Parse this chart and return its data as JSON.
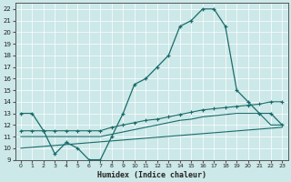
{
  "xlabel": "Humidex (Indice chaleur)",
  "xlim": [
    -0.5,
    23.5
  ],
  "ylim": [
    9,
    22.5
  ],
  "xticks": [
    0,
    1,
    2,
    3,
    4,
    5,
    6,
    7,
    8,
    9,
    10,
    11,
    12,
    13,
    14,
    15,
    16,
    17,
    18,
    19,
    20,
    21,
    22,
    23
  ],
  "yticks": [
    9,
    10,
    11,
    12,
    13,
    14,
    15,
    16,
    17,
    18,
    19,
    20,
    21,
    22
  ],
  "bg_color": "#cce8e8",
  "grid_color": "#b8d8d8",
  "line_color": "#1a6b6b",
  "line1_x": [
    0,
    1,
    2,
    3,
    4,
    5,
    6,
    7,
    8,
    9,
    10,
    11,
    12,
    13,
    14,
    15,
    16,
    17,
    18,
    19,
    20,
    21,
    22,
    23
  ],
  "line1_y": [
    13,
    13,
    11.5,
    9.5,
    10.5,
    10,
    9,
    9,
    11,
    13,
    15.5,
    16,
    17,
    18,
    20.5,
    21,
    22,
    22,
    20.5,
    15,
    14,
    13,
    13,
    12
  ],
  "line2_x": [
    0,
    1,
    2,
    3,
    4,
    5,
    6,
    7,
    8,
    9,
    10,
    11,
    12,
    13,
    14,
    15,
    16,
    17,
    18,
    19,
    20,
    21,
    22,
    23
  ],
  "line2_y": [
    11.5,
    11.5,
    11.5,
    11.5,
    11.5,
    11.5,
    11.5,
    11.5,
    11.8,
    12.0,
    12.2,
    12.4,
    12.5,
    12.7,
    12.9,
    13.1,
    13.3,
    13.4,
    13.5,
    13.6,
    13.7,
    13.8,
    14.0,
    14.0
  ],
  "line3_x": [
    0,
    1,
    2,
    3,
    4,
    5,
    6,
    7,
    8,
    9,
    10,
    11,
    12,
    13,
    14,
    15,
    16,
    17,
    18,
    19,
    20,
    21,
    22,
    23
  ],
  "line3_y": [
    11.0,
    11.0,
    11.0,
    11.0,
    11.0,
    11.0,
    11.0,
    11.0,
    11.2,
    11.4,
    11.6,
    11.8,
    12.0,
    12.2,
    12.4,
    12.5,
    12.7,
    12.8,
    12.9,
    13.0,
    13.0,
    13.0,
    12.0,
    12.0
  ],
  "line4_x": [
    0,
    23
  ],
  "line4_y": [
    10.0,
    11.8
  ]
}
